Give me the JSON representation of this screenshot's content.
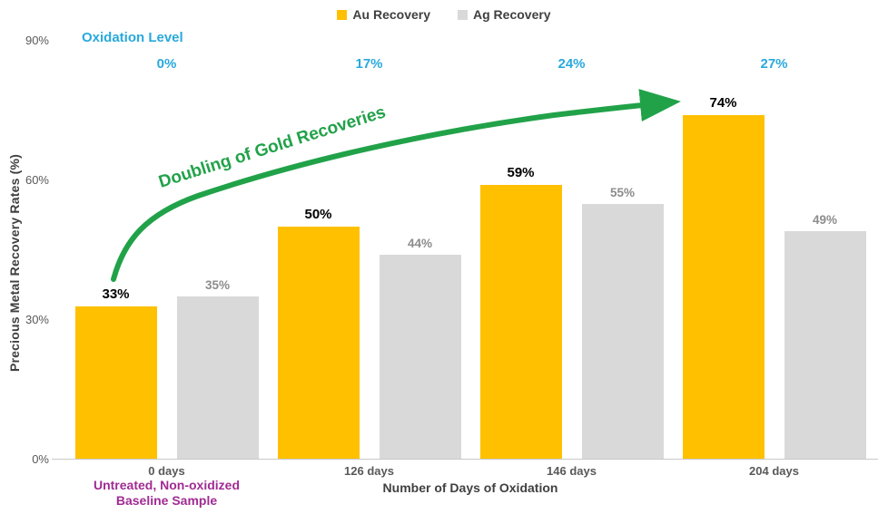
{
  "legend": [
    {
      "label": "Au Recovery",
      "color": "#FFC000"
    },
    {
      "label": "Ag Recovery",
      "color": "#D9D9D9"
    }
  ],
  "oxidation": {
    "title": "Oxidation Level",
    "levels": [
      "0%",
      "17%",
      "24%",
      "27%"
    ]
  },
  "y_axis": {
    "title": "Precious Metal Recovery Rates (%)",
    "ticks": [
      "90%",
      "60%",
      "30%",
      "0%"
    ]
  },
  "x_axis": {
    "title": "Number of Days of Oxidation",
    "categories": [
      "0 days",
      "126 days",
      "146 days",
      "204 days"
    ]
  },
  "annotations": {
    "arrow_text": "Doubling of Gold Recoveries",
    "baseline_note_line1": "Untreated, Non-oxidized",
    "baseline_note_line2": "Baseline Sample"
  },
  "chart_data": {
    "type": "bar",
    "categories": [
      "0 days",
      "126 days",
      "146 days",
      "204 days"
    ],
    "series": [
      {
        "name": "Au Recovery",
        "color": "#FFC000",
        "values": [
          33,
          50,
          59,
          74
        ],
        "label_style": "au"
      },
      {
        "name": "Ag Recovery",
        "color": "#D9D9D9",
        "values": [
          35,
          44,
          55,
          49
        ],
        "label_style": "ag"
      }
    ],
    "data_labels": {
      "au": [
        "33%",
        "50%",
        "59%",
        "74%"
      ],
      "ag": [
        "35%",
        "44%",
        "55%",
        "49%"
      ]
    },
    "oxidation_levels": [
      "0%",
      "17%",
      "24%",
      "27%"
    ],
    "title": "",
    "xlabel": "Number of Days of Oxidation",
    "ylabel": "Precious Metal Recovery Rates (%)",
    "ylim": [
      0,
      90
    ],
    "y_ticks": [
      0,
      30,
      60,
      90
    ],
    "grid": false,
    "legend_position": "top"
  },
  "colors": {
    "au": "#FFC000",
    "ag": "#D9D9D9",
    "cyan": "#29A9DC",
    "green": "#21A249",
    "purple": "#A02B93",
    "axis_text": "#595959",
    "dark_text": "#404040",
    "ag_label": "#8c8c8c",
    "axis_line": "#C8C8C8"
  }
}
